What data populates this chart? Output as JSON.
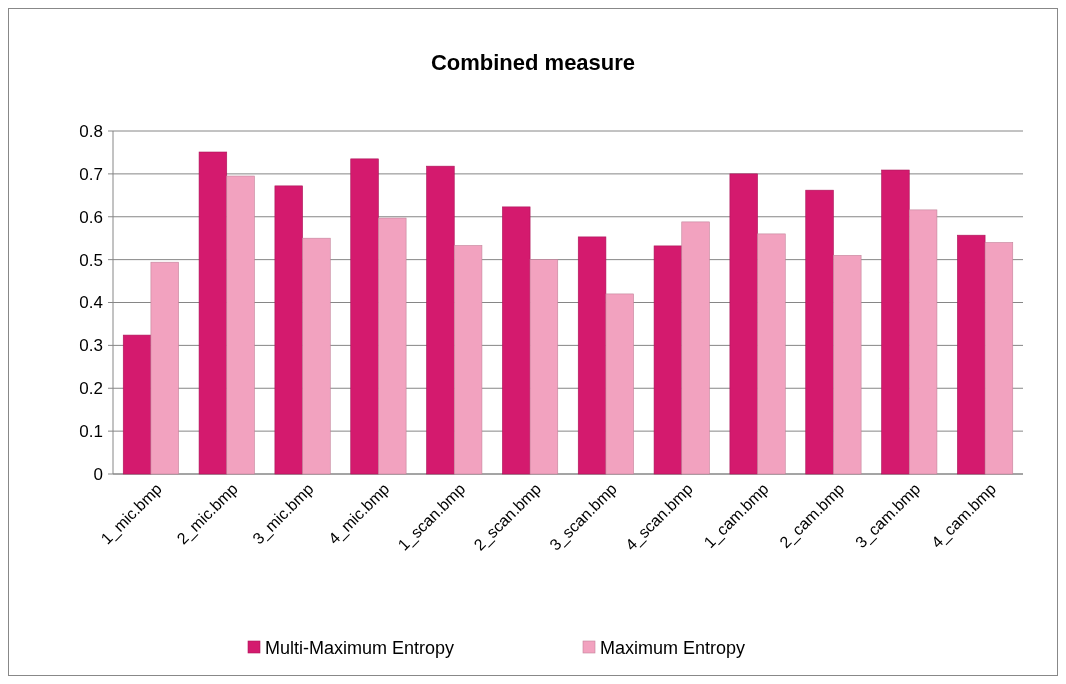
{
  "chart_data": {
    "type": "bar",
    "title": "Combined measure",
    "categories": [
      "1_mic.bmp",
      "2_mic.bmp",
      "3_mic.bmp",
      "4_mic.bmp",
      "1_scan.bmp",
      "2_scan.bmp",
      "3_scan.bmp",
      "4_scan.bmp",
      "1_cam.bmp",
      "2_cam.bmp",
      "3_cam.bmp",
      "4_cam.bmp"
    ],
    "series": [
      {
        "name": "Multi-Maximum Entropy",
        "color": "#d41a6e",
        "values": [
          0.324,
          0.751,
          0.672,
          0.735,
          0.718,
          0.623,
          0.553,
          0.532,
          0.7,
          0.662,
          0.709,
          0.557
        ]
      },
      {
        "name": "Maximum Entropy",
        "color": "#f2a2bf",
        "values": [
          0.494,
          0.695,
          0.55,
          0.597,
          0.533,
          0.5,
          0.42,
          0.588,
          0.56,
          0.51,
          0.616,
          0.54
        ]
      }
    ],
    "ylim": [
      0,
      0.8
    ],
    "yticks": [
      {
        "value": 0,
        "label": "0"
      },
      {
        "value": 0.1,
        "label": "0.1"
      },
      {
        "value": 0.2,
        "label": "0.2"
      },
      {
        "value": 0.3,
        "label": "0.3"
      },
      {
        "value": 0.4,
        "label": "0.4"
      },
      {
        "value": 0.5,
        "label": "0.5"
      },
      {
        "value": 0.6,
        "label": "0.6"
      },
      {
        "value": 0.7,
        "label": "0.7"
      },
      {
        "value": 0.8,
        "label": "0.8"
      }
    ],
    "grid": "y",
    "legend": "bottom"
  }
}
